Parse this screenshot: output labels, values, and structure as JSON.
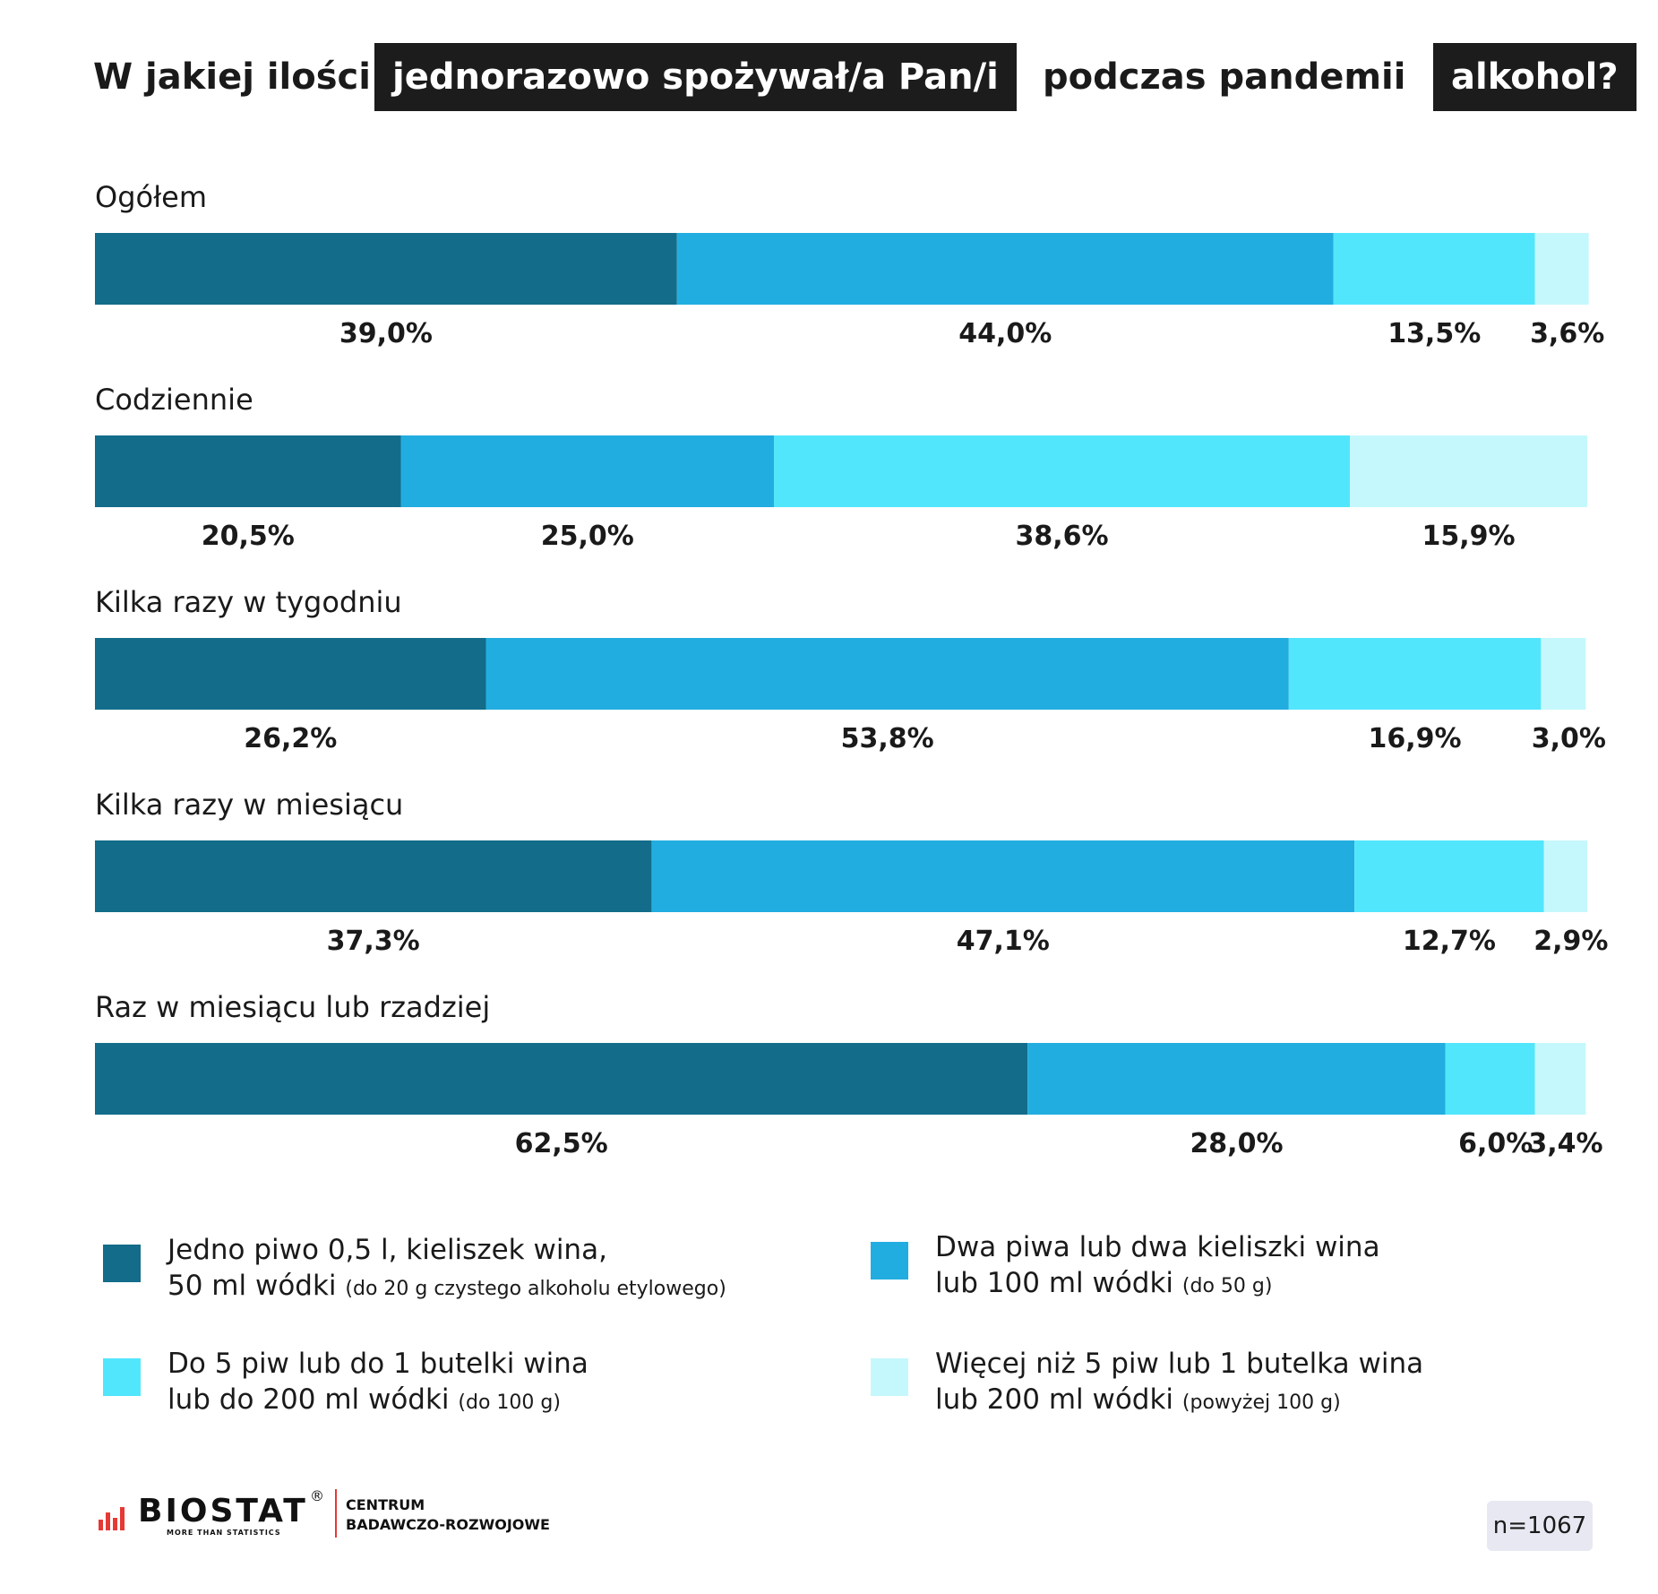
{
  "title": {
    "part1": "W jakiej ilości",
    "part2": "jednorazowo spożywał/a Pan/i",
    "part3": "podczas pandemii",
    "part4": "alkohol?"
  },
  "legend": [
    {
      "line1": "Jedno piwo 0,5 l, kieliszek wina,",
      "line2": "50 ml wódki",
      "note": "(do 20 g czystego alkoholu etylowego)",
      "color": "#126c8a"
    },
    {
      "line1": "Dwa piwa lub dwa kieliszki wina",
      "line2": "lub 100 ml wódki",
      "note": "(do 50 g)",
      "color": "#22ade0"
    },
    {
      "line1": "Do 5 piw lub do 1 butelki wina",
      "line2": "lub do 200 ml wódki",
      "note": "(do 100 g)",
      "color": "#52e6fd"
    },
    {
      "line1": "Więcej niż 5 piw lub 1 butelka wina",
      "line2": "lub 200 ml wódki",
      "note": "(powyżej 100 g)",
      "color": "#c5f8fc"
    }
  ],
  "chart_data": {
    "type": "bar",
    "orientation": "horizontal",
    "stacked": true,
    "title": "W jakiej ilości jednorazowo spożywał/a Pan/i podczas pandemii alkohol?",
    "categories": [
      "Ogółem",
      "Codziennie",
      "Kilka razy w tygodniu",
      "Kilka razy w miesiącu",
      "Raz w miesiącu lub rzadziej"
    ],
    "series": [
      {
        "name": "Jedno piwo 0,5 l, kieliszek wina, 50 ml wódki (do 20 g czystego alkoholu etylowego)",
        "color": "#126c8a",
        "values": [
          39.0,
          20.5,
          26.2,
          37.3,
          62.5
        ],
        "labels": [
          "39,0%",
          "20,5%",
          "26,2%",
          "37,3%",
          "62,5%"
        ]
      },
      {
        "name": "Dwa piwa lub dwa kieliszki wina lub 100 ml wódki (do 50 g)",
        "color": "#22ade0",
        "values": [
          44.0,
          25.0,
          53.8,
          47.1,
          28.0
        ],
        "labels": [
          "44,0%",
          "25,0%",
          "53,8%",
          "47,1%",
          "28,0%"
        ]
      },
      {
        "name": "Do 5 piw lub do 1 butelki wina lub do 200 ml wódki (do 100 g)",
        "color": "#52e6fd",
        "values": [
          13.5,
          38.6,
          16.9,
          12.7,
          6.0
        ],
        "labels": [
          "13,5%",
          "38,6%",
          "16,9%",
          "12,7%",
          "6,0%"
        ]
      },
      {
        "name": "Więcej niż 5 piw lub 1 butelka wina lub 200 ml wódki (powyżej 100 g)",
        "color": "#c5f8fc",
        "values": [
          3.6,
          15.9,
          3.0,
          2.9,
          3.4
        ],
        "labels": [
          "3,6%",
          "15,9%",
          "3,0%",
          "2,9%",
          "3,4%"
        ]
      }
    ],
    "xlim": [
      0,
      100
    ],
    "legend_position": "bottom",
    "grid": false
  },
  "footer": {
    "brand_name": "BIOSTAT",
    "brand_tagline": "MORE THAN STATISTICS",
    "registered_mark": "®",
    "unit_line1": "CENTRUM",
    "unit_line2": "BADAWCZO-ROZWOJOWE",
    "sample_size": "n=1067"
  }
}
